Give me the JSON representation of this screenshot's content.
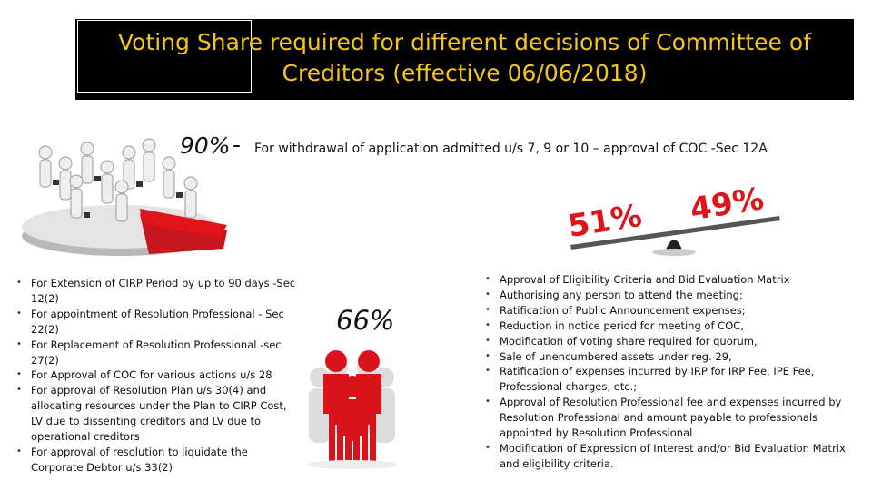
{
  "title": {
    "line1": "Voting Share required for different decisions of Committee of",
    "line2": "Creditors (effective 06/06/2018)"
  },
  "section90": {
    "percent": "90%",
    "separator": "-",
    "text": "For withdrawal of application admitted u/s 7, 9 or 10 – approval of COC -Sec 12A"
  },
  "seesaw": {
    "left_label": "51%",
    "right_label": "49%"
  },
  "section66": {
    "percent": "66%",
    "items": [
      "For Extension of CIRP Period by up to 90 days -Sec 12(2)",
      "For appointment of Resolution Professional - Sec 22(2)",
      "For Replacement of Resolution Professional -sec 27(2)",
      "For Approval of COC for various actions u/s 28",
      "For approval of Resolution Plan u/s 30(4) and allocating resources under the Plan to CIRP Cost, LV due to dissenting creditors and LV due to operational creditors",
      "For approval of resolution to liquidate the Corporate Debtor u/s 33(2)"
    ]
  },
  "section51": {
    "items": [
      "Approval of Eligibility Criteria and Bid Evaluation Matrix",
      "Authorising any person to attend the meeting;",
      "Ratification of Public Announcement expenses;",
      "Reduction in notice period for meeting of COC,",
      "Modification of voting share required for quorum,",
      "Sale of unencumbered assets under reg. 29,",
      "Ratification of expenses incurred by IRP for IRP Fee, IPE Fee, Professional charges, etc.;",
      "Approval of Resolution Professional fee and expenses incurred by Resolution Professional and amount payable to professionals appointed by Resolution Professional",
      "Modification of Expression of Interest and/or Bid Evaluation Matrix and eligibility criteria."
    ]
  },
  "colors": {
    "title_bg": "#000000",
    "title_text": "#f5c518",
    "accent_red": "#e0141b",
    "figure_gray": "#d9d9d9"
  },
  "icons": {
    "crowd": "people-on-pie-chart-illustration",
    "seesaw": "seesaw-51-49-illustration",
    "people": "red-and-white-people-group-illustration"
  }
}
